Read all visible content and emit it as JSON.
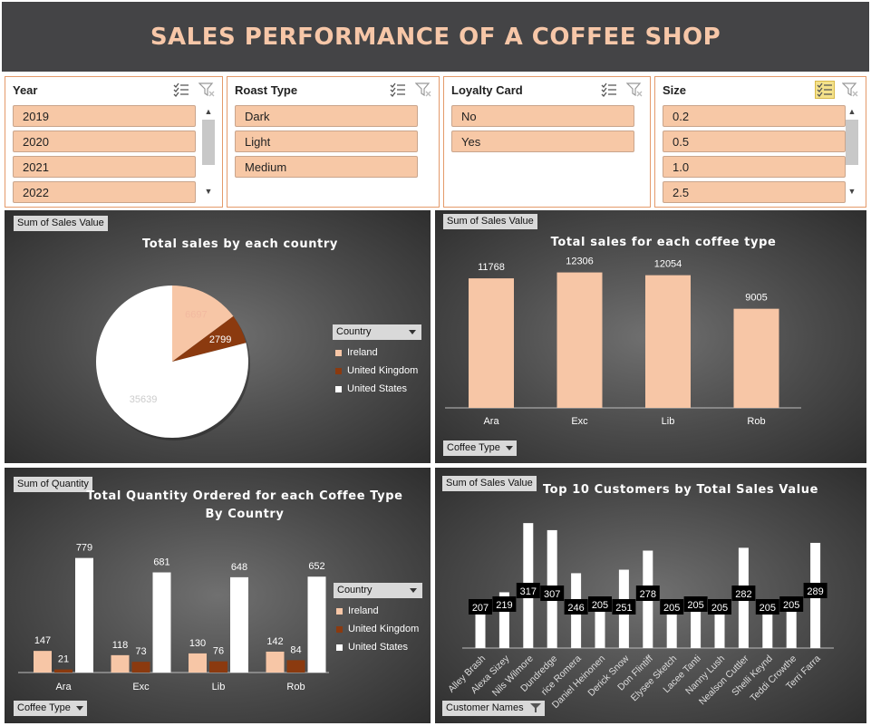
{
  "header": {
    "title": "SALES PERFORMANCE OF A COFFEE SHOP"
  },
  "slicers": [
    {
      "title": "Year",
      "items": [
        "2019",
        "2020",
        "2021",
        "2022"
      ],
      "scroll": true,
      "filter_active": false
    },
    {
      "title": "Roast Type",
      "items": [
        "Dark",
        "Light",
        "Medium"
      ],
      "scroll": false,
      "filter_active": false
    },
    {
      "title": "Loyalty Card",
      "items": [
        "No",
        "Yes"
      ],
      "scroll": false,
      "filter_active": false
    },
    {
      "title": "Size",
      "items": [
        "0.2",
        "0.5",
        "1.0",
        "2.5"
      ],
      "scroll": true,
      "filter_active": true
    }
  ],
  "colors": {
    "ireland": "#f7c6a6",
    "united_kingdom": "#8b3a0f",
    "united_states": "#ffffff",
    "bar": "#f7c6a6",
    "title": "#f7c7a8"
  },
  "charts": {
    "country_pie": {
      "field_button": "Sum of Sales Value",
      "title": "Total sales  by each country",
      "legend_title": "Country"
    },
    "coffee_type_bar": {
      "field_button": "Sum of Sales Value",
      "title": "Total sales for each coffee type",
      "axis_button": "Coffee Type"
    },
    "quantity_bar": {
      "field_button": "Sum of Quantity",
      "title_line1": "Total Quantity Ordered for each Coffee Type",
      "title_line2": "By Country",
      "legend_title": "Country",
      "axis_button": "Coffee Type"
    },
    "customers_bar": {
      "field_button": "Sum of Sales Value",
      "title": "Top 10 Customers  by Total Sales Value",
      "axis_button": "Customer Names"
    }
  },
  "chart_data": [
    {
      "type": "pie",
      "title": "Total sales  by each country",
      "categories": [
        "Ireland",
        "United Kingdom",
        "United States"
      ],
      "values": [
        6697,
        2799,
        35639
      ],
      "legend": "right"
    },
    {
      "type": "bar",
      "title": "Total sales for each coffee type",
      "categories": [
        "Ara",
        "Exc",
        "Lib",
        "Rob"
      ],
      "values": [
        11768,
        12306,
        12054,
        9005
      ],
      "ylim": [
        0,
        14000
      ]
    },
    {
      "type": "bar",
      "title": "Total Quantity Ordered for each Coffee Type By Country",
      "categories": [
        "Ara",
        "Exc",
        "Lib",
        "Rob"
      ],
      "series": [
        {
          "name": "Ireland",
          "values": [
            147,
            118,
            130,
            142
          ]
        },
        {
          "name": "United Kingdom",
          "values": [
            21,
            73,
            76,
            84
          ]
        },
        {
          "name": "United States",
          "values": [
            779,
            681,
            648,
            652
          ]
        }
      ],
      "ylim": [
        0,
        900
      ],
      "legend": "right"
    },
    {
      "type": "bar",
      "title": "Top 10 Customers  by Total Sales Value",
      "categories": [
        "Alley Brash",
        "Alexa Sizey",
        "Nils Wilmore",
        "Dundredge",
        "rice Romera",
        "Daniel Heinonen",
        "Derick Snow",
        "Don Flintiff",
        "Elysee Sketch",
        "Lacee Tanti",
        "Nanny Lush",
        "Nealson Cuttler",
        "Shelli Keynd",
        "Teddi Crowthe",
        "Terri Farra"
      ],
      "values": [
        207,
        219,
        317,
        307,
        246,
        205,
        251,
        278,
        205,
        205,
        205,
        282,
        205,
        205,
        289
      ],
      "ylim": [
        140,
        330
      ]
    }
  ]
}
